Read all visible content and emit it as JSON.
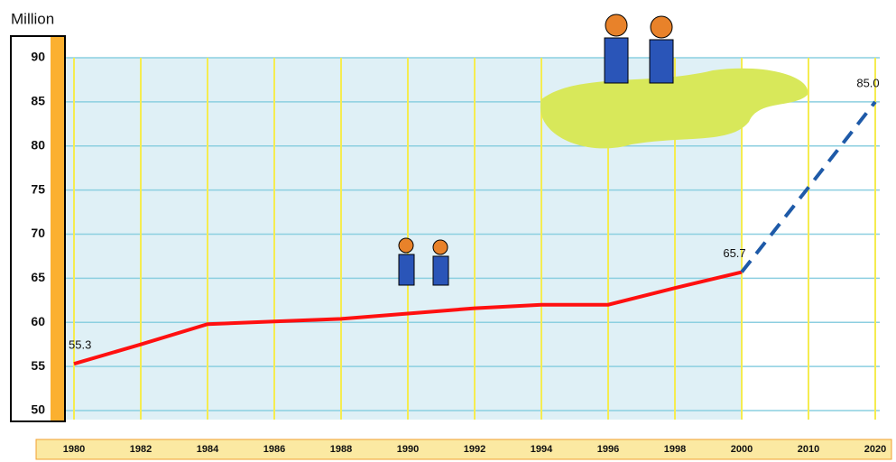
{
  "chart_data": {
    "type": "line",
    "y_label": "Million",
    "categories": [
      "1980",
      "1982",
      "1984",
      "1986",
      "1988",
      "1990",
      "1992",
      "1994",
      "1996",
      "1998",
      "2000",
      "2010",
      "2020"
    ],
    "series": [
      {
        "color": "#ff1010",
        "dashed": false,
        "values": [
          55.3,
          57.5,
          59.8,
          60.1,
          60.4,
          61.0,
          61.6,
          62.0,
          62.0,
          63.9,
          65.7,
          null,
          null
        ],
        "value_labels": [
          "55.3",
          null,
          null,
          null,
          null,
          null,
          null,
          null,
          null,
          null,
          "65.7",
          null,
          null
        ]
      },
      {
        "color": "#1e5aa8",
        "dashed": true,
        "values": [
          null,
          null,
          null,
          null,
          null,
          null,
          null,
          null,
          null,
          null,
          65.7,
          75.3,
          85.0
        ],
        "value_labels": [
          null,
          null,
          null,
          null,
          null,
          null,
          null,
          null,
          null,
          null,
          null,
          null,
          "85.0"
        ]
      }
    ],
    "ylim": [
      50,
      90
    ],
    "yticks": [
      50,
      55,
      60,
      65,
      70,
      75,
      80,
      85,
      90
    ],
    "grid": true
  }
}
